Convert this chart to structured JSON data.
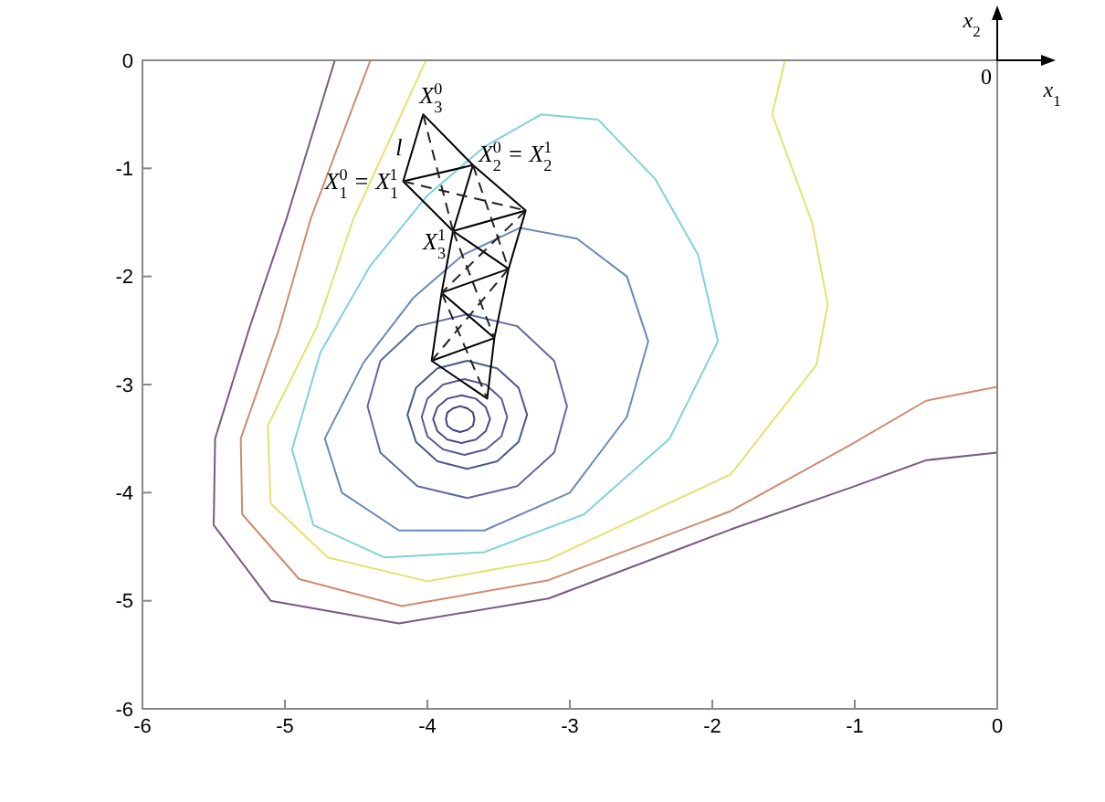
{
  "chart_data": {
    "type": "line",
    "xlim": [
      -6,
      0
    ],
    "xticks": [
      -6,
      -5,
      -4,
      -3,
      -2,
      -1,
      0
    ],
    "ylim": [
      -6,
      0
    ],
    "yticks": [
      -6,
      -5,
      -4,
      -3,
      -2,
      -1,
      0
    ],
    "grid": false,
    "legend": false,
    "marker": "none",
    "series": [
      {
        "color": "#40407a",
        "x": [
          -3.67,
          -3.68,
          -3.72,
          -3.77,
          -3.82,
          -3.86,
          -3.87,
          -3.86,
          -3.82,
          -3.77,
          -3.72,
          -3.68,
          -3.67,
          -3.68
        ],
        "values": [
          -3.32,
          -3.26,
          -3.22,
          -3.2,
          -3.22,
          -3.26,
          -3.32,
          -3.38,
          -3.42,
          -3.44,
          -3.42,
          -3.38,
          -3.32,
          -3.26
        ]
      },
      {
        "color": "#4c4c88",
        "x": [
          -3.56,
          -3.59,
          -3.66,
          -3.76,
          -3.86,
          -3.93,
          -3.96,
          -3.93,
          -3.86,
          -3.76,
          -3.66,
          -3.59,
          -3.56,
          -3.59
        ],
        "values": [
          -3.32,
          -3.21,
          -3.13,
          -3.1,
          -3.13,
          -3.21,
          -3.32,
          -3.43,
          -3.51,
          -3.54,
          -3.51,
          -3.43,
          -3.32,
          -3.21
        ]
      },
      {
        "color": "#5a5a94",
        "x": [
          -3.44,
          -3.48,
          -3.59,
          -3.74,
          -3.89,
          -4.0,
          -4.04,
          -4.0,
          -3.89,
          -3.74,
          -3.59,
          -3.48,
          -3.44,
          -3.48
        ],
        "values": [
          -3.3,
          -3.13,
          -3.0,
          -2.95,
          -3.0,
          -3.13,
          -3.3,
          -3.48,
          -3.6,
          -3.65,
          -3.6,
          -3.48,
          -3.3,
          -3.13
        ]
      },
      {
        "color": "#4a5a8a",
        "x": [
          -3.3,
          -3.36,
          -3.51,
          -3.72,
          -3.93,
          -4.08,
          -4.14,
          -4.08,
          -3.93,
          -3.72,
          -3.51,
          -3.36,
          -3.3,
          -3.36
        ],
        "values": [
          -3.28,
          -3.03,
          -2.85,
          -2.78,
          -2.85,
          -3.03,
          -3.28,
          -3.53,
          -3.71,
          -3.78,
          -3.71,
          -3.53,
          -3.28,
          -3.03
        ]
      },
      {
        "color": "#606aa0",
        "x": [
          -3.02,
          -3.11,
          -3.37,
          -3.72,
          -4.07,
          -4.33,
          -4.42,
          -4.33,
          -4.07,
          -3.72,
          -3.37,
          -3.11,
          -3.02,
          -3.11
        ],
        "values": [
          -3.2,
          -2.78,
          -2.46,
          -2.35,
          -2.46,
          -2.78,
          -3.2,
          -3.63,
          -3.94,
          -4.05,
          -3.94,
          -3.63,
          -3.2,
          -2.78
        ]
      },
      {
        "color": "#6a8ab8",
        "x": [
          -2.45,
          -2.6,
          -2.95,
          -3.35,
          -3.75,
          -4.1,
          -4.45,
          -4.72,
          -4.6,
          -4.2,
          -3.6,
          -3.0,
          -2.6,
          -2.45,
          -2.6
        ],
        "values": [
          -2.6,
          -2.0,
          -1.65,
          -1.55,
          -1.8,
          -2.2,
          -2.8,
          -3.5,
          -4.0,
          -4.35,
          -4.35,
          -4.0,
          -3.3,
          -2.6,
          -2.0
        ]
      },
      {
        "color": "#7fd2d8",
        "x": [
          -1.96,
          -2.1,
          -2.4,
          -2.8,
          -3.2,
          -3.6,
          -4.0,
          -4.4,
          -4.75,
          -4.95,
          -4.8,
          -4.3,
          -3.6,
          -2.9,
          -2.3,
          -1.96,
          -2.1
        ],
        "values": [
          -2.6,
          -1.8,
          -1.1,
          -0.55,
          -0.5,
          -0.8,
          -1.25,
          -1.9,
          -2.7,
          -3.6,
          -4.3,
          -4.6,
          -4.55,
          -4.2,
          -3.5,
          -2.6,
          -1.8
        ]
      },
      {
        "color": "#e2e270",
        "x": [
          -4.01,
          -4.52,
          -4.78,
          -5.12,
          -5.1,
          -4.7,
          -4.0,
          -3.15,
          -1.87,
          -1.27,
          -1.19,
          -1.3,
          -1.58,
          -1.49
        ],
        "values": [
          0,
          -1.47,
          -2.48,
          -3.38,
          -4.1,
          -4.6,
          -4.82,
          -4.62,
          -3.83,
          -2.82,
          -2.26,
          -1.5,
          -0.5,
          0
        ]
      },
      {
        "color": "#d08a70",
        "x": [
          -4.4,
          -4.82,
          -5.04,
          -5.31,
          -5.3,
          -4.9,
          -4.18,
          -3.15,
          -1.87,
          -1.02,
          -0.5,
          0
        ],
        "values": [
          0,
          -1.47,
          -2.48,
          -3.5,
          -4.2,
          -4.8,
          -5.05,
          -4.81,
          -4.17,
          -3.55,
          -3.15,
          -3.02
        ]
      },
      {
        "color": "#7a5a80",
        "x": [
          -4.65,
          -4.99,
          -5.25,
          -5.49,
          -5.5,
          -5.1,
          -4.2,
          -3.15,
          -1.87,
          -1.02,
          -0.5,
          0
        ],
        "values": [
          0,
          -1.47,
          -2.48,
          -3.5,
          -4.3,
          -5.0,
          -5.21,
          -4.98,
          -4.34,
          -3.95,
          -3.7,
          -3.63
        ]
      },
      {
        "color": "#000000",
        "line_style": "solid",
        "x": [
          -4.17,
          -4.03,
          -3.68,
          -4.17,
          -3.82,
          -3.68,
          -3.31,
          -3.82,
          -3.31,
          -3.43,
          -3.82,
          -3.9,
          -3.43,
          -3.53,
          -3.9,
          -3.97,
          -3.53,
          -3.58,
          -3.97
        ],
        "values": [
          -1.12,
          -0.5,
          -0.97,
          -1.12,
          -1.58,
          -0.97,
          -1.39,
          -1.58,
          -1.39,
          -1.93,
          -1.58,
          -2.15,
          -1.93,
          -2.57,
          -2.15,
          -2.78,
          -2.57,
          -3.13,
          -2.78
        ]
      },
      {
        "color": "#222222",
        "line_style": "dashed",
        "x": [
          -4.03,
          -3.82,
          null,
          -4.17,
          -3.31,
          null,
          -3.68,
          -3.43,
          null,
          -3.31,
          -3.9,
          null,
          -3.82,
          -3.53,
          null,
          -3.43,
          -3.97,
          null,
          -3.9,
          -3.58
        ],
        "values": [
          -0.5,
          -1.58,
          null,
          -1.12,
          -1.39,
          null,
          -0.97,
          -1.93,
          null,
          -1.39,
          -2.15,
          null,
          -1.58,
          -2.57,
          null,
          -1.93,
          -2.78,
          null,
          -2.15,
          -3.13
        ]
      }
    ],
    "annotations": [
      {
        "text": "X$_{3}$$^{0}$",
        "x": -4.03,
        "y": -0.5
      },
      {
        "text": "X$_{1}$$^{0}$ = X$_{1}$$^{1}$",
        "x": -4.17,
        "y": -1.12
      },
      {
        "text": "X$_{2}$$^{0}$ = X$_{2}$$^{1}$",
        "x": -3.68,
        "y": -0.97
      },
      {
        "text": "X$_{3}$$^{1}$",
        "x": -3.82,
        "y": -1.58
      },
      "l",
      "x$_{2}$",
      "0",
      "x$_{1}$"
    ]
  }
}
